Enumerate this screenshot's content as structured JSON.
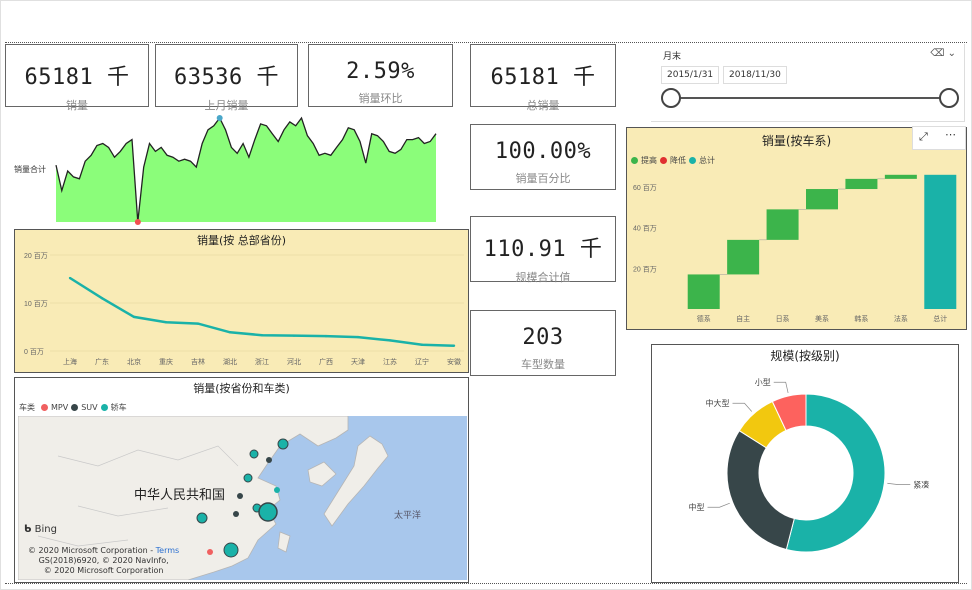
{
  "kpis": [
    {
      "value": "65181 千",
      "label": "销量"
    },
    {
      "value": "63536 千",
      "label": "上月销量"
    },
    {
      "value": "2.59%",
      "label": "销量环比"
    },
    {
      "value": "65181 千",
      "label": "总销量"
    },
    {
      "value": "100.00%",
      "label": "销量百分比"
    },
    {
      "value": "110.91 千",
      "label": "规模合计值"
    },
    {
      "value": "203",
      "label": "车型数量"
    }
  ],
  "slicer": {
    "title": "月末",
    "start": "2015/1/31",
    "end": "2018/11/30",
    "range": [
      0,
      1
    ]
  },
  "sparkline": {
    "label": "销量合计",
    "values": [
      48,
      22,
      42,
      36,
      34,
      52,
      58,
      68,
      70,
      66,
      56,
      62,
      70,
      74,
      -10,
      46,
      70,
      62,
      66,
      58,
      56,
      52,
      54,
      52,
      46,
      70,
      84,
      88,
      96,
      84,
      66,
      60,
      70,
      56,
      74,
      90,
      88,
      80,
      72,
      84,
      92,
      88,
      96,
      78,
      70,
      58,
      60,
      58,
      66,
      74,
      86,
      84,
      72,
      50,
      80,
      78,
      72,
      62,
      60,
      64,
      74,
      74,
      76,
      70,
      72,
      80
    ],
    "fill": "#8bfd7a",
    "marker_high_color": "#4aa7c9",
    "marker_low_color": "#f05050"
  },
  "line_chart": {
    "title": "销量(按 总部省份)",
    "y_ticks": [
      "20 百万",
      "10 百万",
      "0 百万"
    ],
    "color": "#1ab2a8",
    "chart_data": {
      "type": "line",
      "categories": [
        "上海",
        "广东",
        "北京",
        "重庆",
        "吉林",
        "湖北",
        "浙江",
        "河北",
        "广西",
        "天津",
        "江苏",
        "辽宁",
        "安徽"
      ],
      "series": [
        {
          "values": [
            15.2,
            11.0,
            7.1,
            6.0,
            5.7,
            3.9,
            3.3,
            3.2,
            3.1,
            2.9,
            2.2,
            1.3,
            1.1
          ]
        }
      ],
      "ylim": [
        0,
        20
      ]
    }
  },
  "waterfall": {
    "title": "销量(按车系)",
    "legend": [
      {
        "label": "提高",
        "color": "#3cb44b"
      },
      {
        "label": "降低",
        "color": "#e03030"
      },
      {
        "label": "总计",
        "color": "#1ab2a8"
      }
    ],
    "y_ticks": [
      "60 百万",
      "40 百万",
      "20 百万"
    ],
    "chart_data": {
      "type": "bar",
      "categories": [
        "德系",
        "自主",
        "日系",
        "美系",
        "韩系",
        "法系",
        "总计"
      ],
      "values": [
        17.0,
        17.0,
        15.0,
        10.0,
        5.0,
        2.0,
        66.0
      ],
      "ylim": [
        0,
        70
      ]
    }
  },
  "map": {
    "title": "销量(按省份和车类)",
    "legend_label": "车类",
    "legend": [
      {
        "label": "MPV",
        "color": "#f06060"
      },
      {
        "label": "SUV",
        "color": "#374649"
      },
      {
        "label": "轿车",
        "color": "#1ab2a8"
      }
    ],
    "country_label": "中华人民共和国",
    "ocean_label": "太平洋",
    "bing_label": "Bing",
    "credits": [
      "© 2020 Microsoft Corporation -",
      "Terms",
      "GS(2018)6920, © 2020 NavInfo,",
      "© 2020 Microsoft Corporation"
    ]
  },
  "donut": {
    "title": "规模(按级别)",
    "chart_data": {
      "type": "pie",
      "categories": [
        "紧凑",
        "中型",
        "中大型",
        "小型"
      ],
      "values": [
        54,
        30,
        9,
        7
      ],
      "colors": [
        "#1ab2a8",
        "#374649",
        "#f2c80f",
        "#fd625e"
      ]
    }
  }
}
